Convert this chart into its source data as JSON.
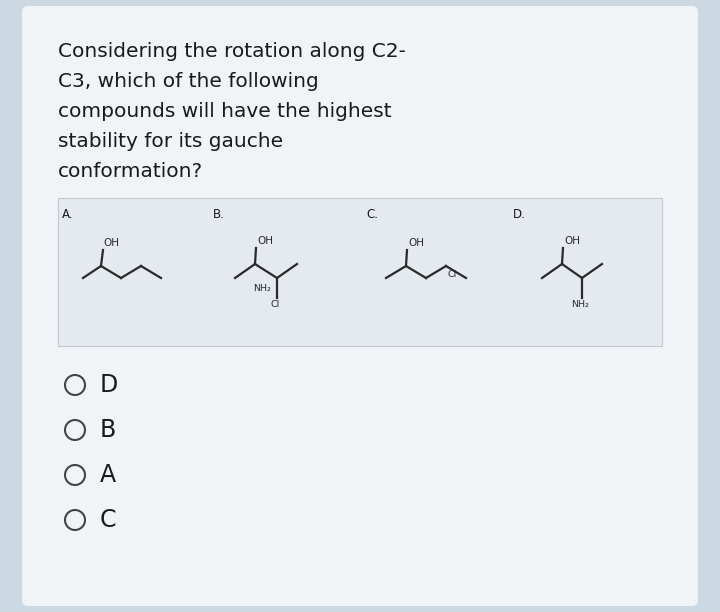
{
  "bg_color": "#ccd9e3",
  "card_color": "#f0f4f7",
  "question_text": [
    "Considering the rotation along C2-",
    "C3, which of the following",
    "compounds will have the highest",
    "stability for its gauche",
    "conformation?"
  ],
  "question_fontsize": 14.5,
  "choices": [
    "D",
    "B",
    "A",
    "C"
  ],
  "choice_fontsize": 17,
  "label_fontsize": 8.5,
  "compound_labels": [
    "A.",
    "B.",
    "C.",
    "D."
  ],
  "text_color": "#1a1a1a",
  "circle_color": "#444444",
  "struct_color": "#2a2a2a",
  "box_color": "#e8edf2",
  "box_border": "#c0c8d0"
}
